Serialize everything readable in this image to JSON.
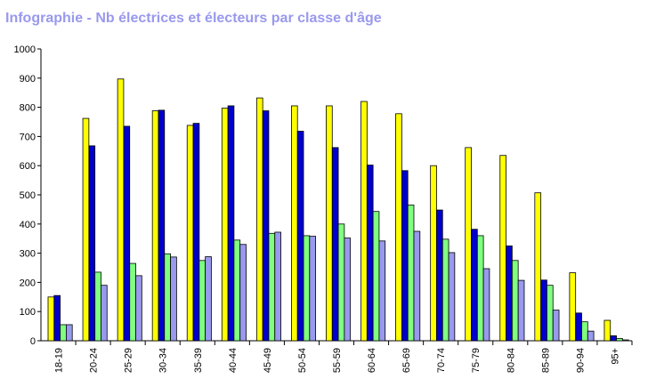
{
  "chart_data": {
    "type": "bar",
    "title": "Infographie - Nb électrices et électeurs par classe d'âge",
    "xlabel": "",
    "ylabel": "",
    "ylim": [
      0,
      1000
    ],
    "yticks": [
      0,
      100,
      200,
      300,
      400,
      500,
      600,
      700,
      800,
      900,
      1000
    ],
    "grid": false,
    "legend": "none",
    "categories": [
      "18-19",
      "20-24",
      "25-29",
      "30-34",
      "35-39",
      "40-44",
      "45-49",
      "50-54",
      "55-59",
      "60-64",
      "65-69",
      "70-74",
      "75-79",
      "80-84",
      "85-89",
      "90-94",
      "95+"
    ],
    "series": [
      {
        "color": "#ffff00",
        "values": [
          150,
          762,
          897,
          788,
          738,
          797,
          832,
          805,
          805,
          820,
          778,
          600,
          662,
          635,
          507,
          233,
          70
        ]
      },
      {
        "color": "#0000cc",
        "values": [
          155,
          668,
          735,
          790,
          745,
          805,
          788,
          718,
          662,
          602,
          583,
          448,
          382,
          325,
          208,
          95,
          17
        ]
      },
      {
        "color": "#80ff80",
        "values": [
          55,
          235,
          265,
          298,
          275,
          345,
          368,
          360,
          400,
          443,
          465,
          348,
          360,
          275,
          190,
          65,
          8
        ]
      },
      {
        "color": "#9999ee",
        "values": [
          55,
          190,
          223,
          287,
          288,
          330,
          372,
          358,
          352,
          342,
          375,
          302,
          247,
          207,
          105,
          33,
          3
        ]
      }
    ]
  }
}
